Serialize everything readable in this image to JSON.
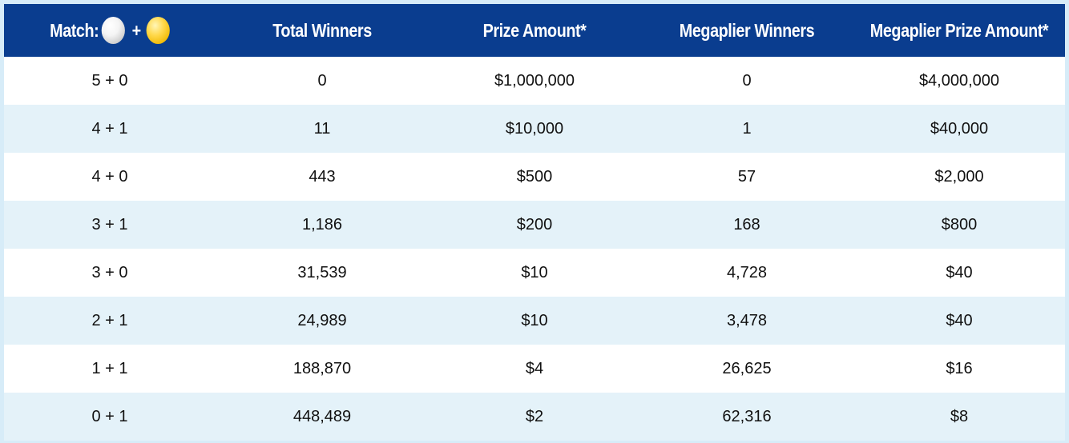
{
  "header": {
    "match_label": "Match:",
    "plus": "+",
    "total_winners": "Total Winners",
    "prize_amount": "Prize Amount*",
    "megaplier_winners": "Megaplier Winners",
    "megaplier_prize_amount": "Megaplier Prize Amount*",
    "ball_icons": [
      "white-ball-icon",
      "gold-megaball-icon"
    ]
  },
  "colors": {
    "header_bg": "#0a3d8f",
    "header_text": "#ffffff",
    "row_alt": "#e4f2f9",
    "row": "#ffffff",
    "frame": "#d7ecf8"
  },
  "rows": [
    [
      "5 + 0",
      "0",
      "$1,000,000",
      "0",
      "$4,000,000"
    ],
    [
      "4 + 1",
      "11",
      "$10,000",
      "1",
      "$40,000"
    ],
    [
      "4 + 0",
      "443",
      "$500",
      "57",
      "$2,000"
    ],
    [
      "3 + 1",
      "1,186",
      "$200",
      "168",
      "$800"
    ],
    [
      "3 + 0",
      "31,539",
      "$10",
      "4,728",
      "$40"
    ],
    [
      "2 + 1",
      "24,989",
      "$10",
      "3,478",
      "$40"
    ],
    [
      "1 + 1",
      "188,870",
      "$4",
      "26,625",
      "$16"
    ],
    [
      "0 + 1",
      "448,489",
      "$2",
      "62,316",
      "$8"
    ]
  ]
}
